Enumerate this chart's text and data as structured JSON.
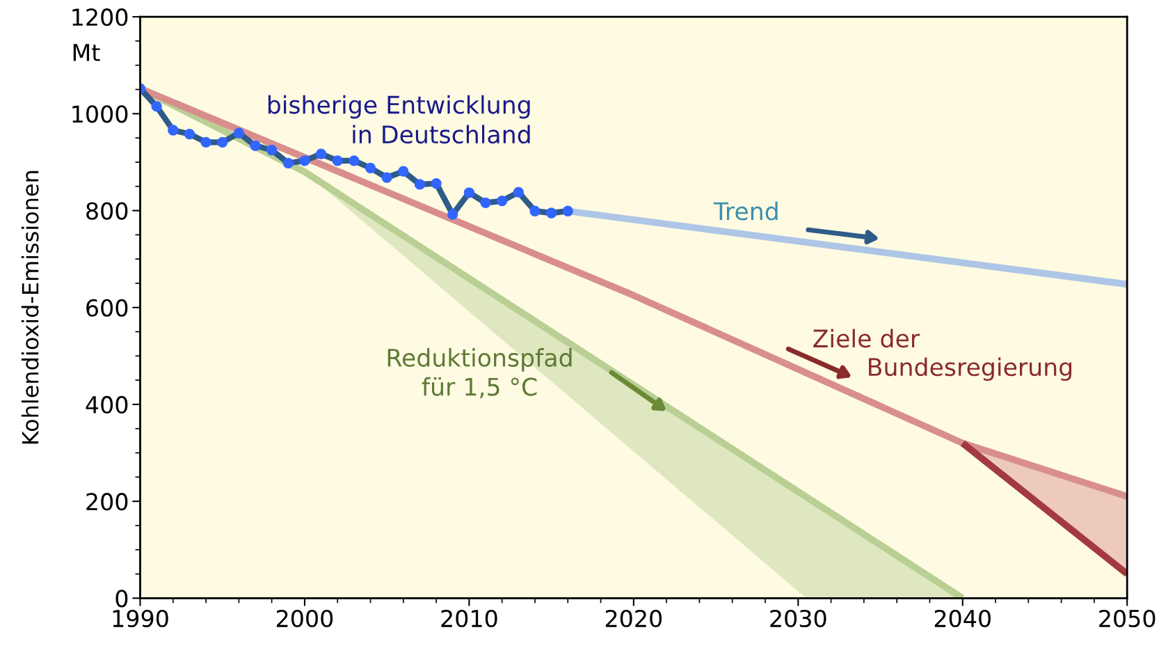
{
  "chart_data": {
    "type": "line",
    "ylabel": "Kohlendioxid-Emissionen",
    "xlim": [
      1990,
      2050
    ],
    "xticks": [
      1990,
      2000,
      2010,
      2020,
      2030,
      2040,
      2050
    ],
    "ylim": [
      0,
      1200
    ],
    "yticks": [
      0,
      200,
      400,
      600,
      800,
      1000,
      1200
    ],
    "grid": false,
    "legend": false,
    "line_style": "solid",
    "series": [
      {
        "name": "Reduktionspfad\nfür 1,5 °C",
        "color": "#b9cf94",
        "x": [
          1990,
          2000,
          2030.5,
          2040
        ],
        "values": [
          1052,
          880,
          209,
          0
        ],
        "lower": [
          null,
          880,
          0,
          0
        ],
        "upper": [
          null,
          880,
          209,
          0
        ]
      },
      {
        "name": "Ziele der\nBundesregierung",
        "color": "#d98e8e",
        "x": [
          1990,
          2020,
          2040,
          2050
        ],
        "values": [
          1052,
          625,
          320,
          210
        ],
        "lower": [
          null,
          null,
          320,
          50
        ],
        "upper": [
          null,
          null,
          320,
          210
        ]
      },
      {
        "color": "#a33a3f",
        "x": [
          2040,
          2050
        ],
        "values": [
          320,
          50
        ]
      },
      {
        "name": "Trend",
        "color": "#aec6e6",
        "x": [
          2016,
          2050
        ],
        "values": [
          799,
          648
        ]
      },
      {
        "name": "bisherige Entwicklung\nin Deutschland",
        "color": "#2f5b8a",
        "marker": "circle",
        "x": [
          1990,
          1991,
          1992,
          1993,
          1994,
          1995,
          1996,
          1997,
          1998,
          1999,
          2000,
          2001,
          2002,
          2003,
          2004,
          2005,
          2006,
          2007,
          2008,
          2009,
          2010,
          2011,
          2012,
          2013,
          2014,
          2015,
          2016
        ],
        "values": [
          1052,
          1015,
          966,
          958,
          941,
          941,
          960,
          934,
          925,
          898,
          903,
          917,
          903,
          903,
          888,
          868,
          881,
          854,
          856,
          792,
          837,
          816,
          820,
          838,
          799,
          795,
          799
        ]
      }
    ],
    "annotations": [
      "Mt"
    ]
  }
}
